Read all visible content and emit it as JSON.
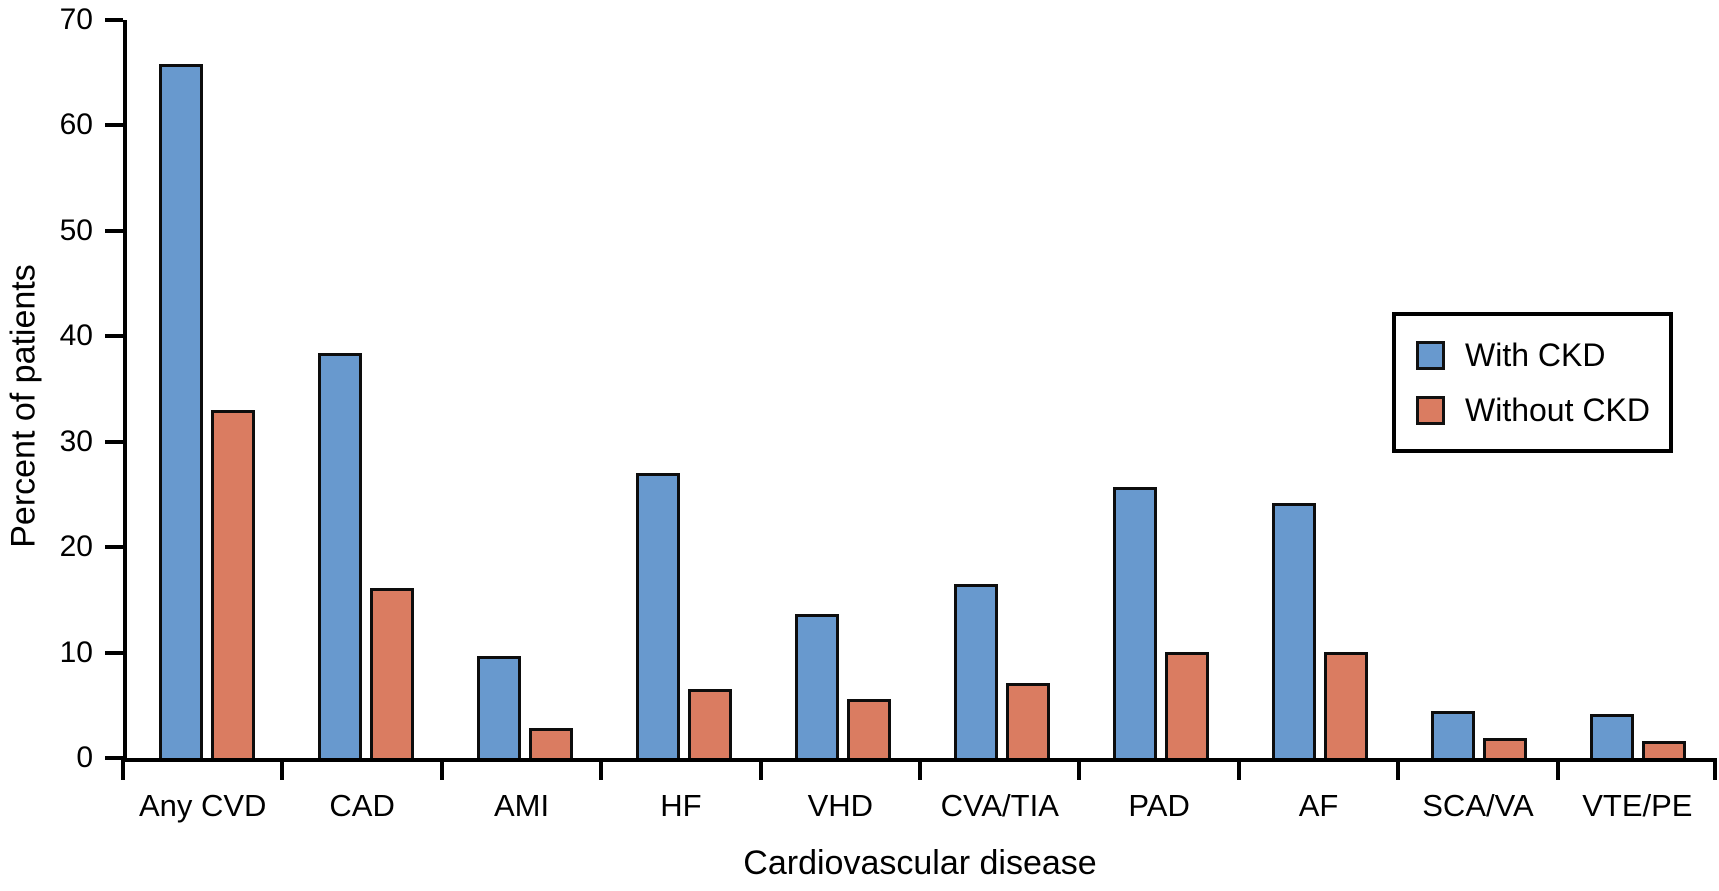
{
  "figure": {
    "background": "#ffffff",
    "axis_color": "#000000"
  },
  "chart_data": {
    "type": "bar",
    "title": "",
    "xlabel": "Cardiovascular disease",
    "ylabel": "Percent of patients",
    "categories": [
      "Any CVD",
      "CAD",
      "AMI",
      "HF",
      "VHD",
      "CVA/TIA",
      "PAD",
      "AF",
      "SCA/VA",
      "VTE/PE"
    ],
    "series": [
      {
        "name": "With CKD",
        "color": "#6899CE",
        "values": [
          65.8,
          38.4,
          9.7,
          27.0,
          13.7,
          16.5,
          25.7,
          24.2,
          4.5,
          4.2
        ]
      },
      {
        "name": "Without CKD",
        "color": "#DA7C61",
        "values": [
          33.0,
          16.1,
          2.8,
          6.5,
          5.6,
          7.1,
          10.1,
          10.1,
          1.9,
          1.6
        ]
      }
    ],
    "ylim": [
      0,
      70
    ],
    "yticks": [
      0,
      10,
      20,
      30,
      40,
      50,
      60,
      70
    ],
    "grid": false,
    "legend_position": "upper right",
    "bar_edge_color": "#000000"
  }
}
